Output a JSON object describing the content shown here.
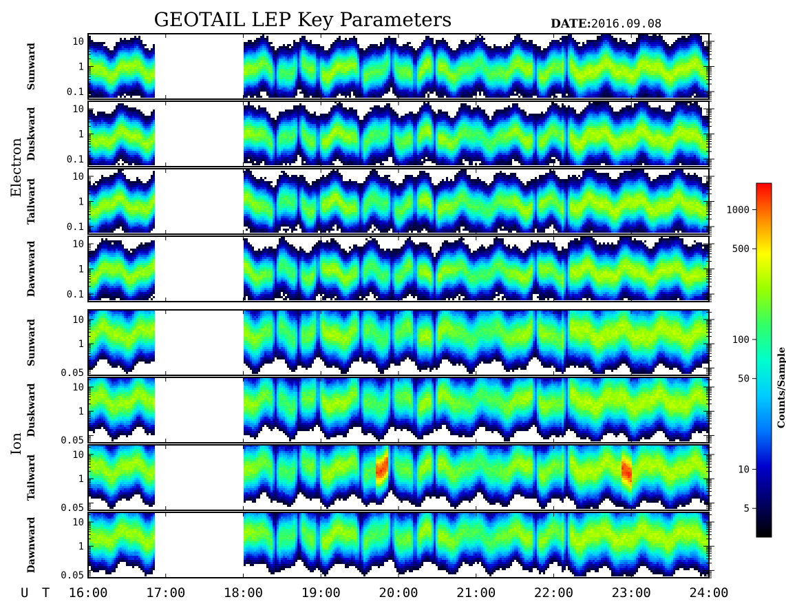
{
  "header": {
    "title": "GEOTAIL LEP Key Parameters",
    "date_label": "DATE:",
    "date_value": "2016.09.08"
  },
  "chart_data": {
    "type": "heatmap",
    "title": "GEOTAIL LEP Key Parameters",
    "x_axis": {
      "label": "U T",
      "range": [
        "16:00",
        "24:00"
      ],
      "ticks": [
        "16:00",
        "17:00",
        "18:00",
        "19:00",
        "20:00",
        "21:00",
        "22:00",
        "23:00",
        "24:00"
      ],
      "data_gap": [
        "16:53",
        "18:00"
      ]
    },
    "groups": [
      {
        "name": "Electron",
        "y_ticks": [
          "10",
          "1",
          "0.1"
        ],
        "y_range": [
          0.05,
          20
        ],
        "panels": [
          "Sunward",
          "Duskward",
          "Tailward",
          "Dawnward"
        ]
      },
      {
        "name": "Ion",
        "y_ticks": [
          "10",
          "1",
          "0.05"
        ],
        "y_range": [
          0.05,
          25
        ],
        "panels": [
          "Sunward",
          "Duskward",
          "Tailward",
          "Dawnward"
        ]
      }
    ],
    "colorbar": {
      "label": "Counts/Sample",
      "scale": "log",
      "range": [
        3,
        1600
      ],
      "ticks": [
        "1000",
        "500",
        "100",
        "50",
        "10",
        "5"
      ],
      "colors": [
        "#000000",
        "#000066",
        "#0000cc",
        "#0077ff",
        "#00ccff",
        "#00ffcc",
        "#33ff66",
        "#99ff00",
        "#ffff00",
        "#ff8800",
        "#ff0000"
      ]
    }
  }
}
